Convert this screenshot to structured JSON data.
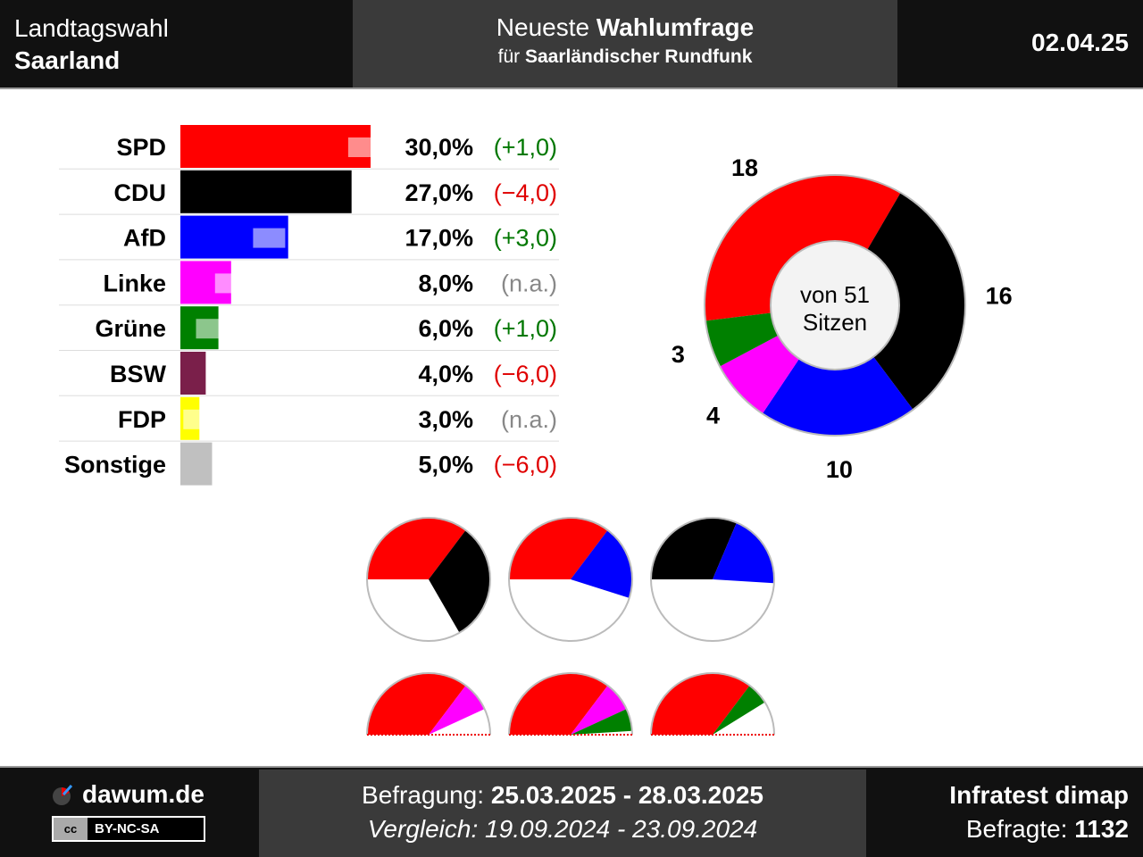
{
  "header": {
    "title_line1": "Landtagswahl",
    "title_line2": "Saarland",
    "center_prefix": "Neueste",
    "center_bold": "Wahlumfrage",
    "center_sub_prefix": "für",
    "center_sub_bold": "Saarländischer Rundfunk",
    "date": "02.04.25"
  },
  "footer": {
    "brand": "dawum.de",
    "license": "BY-NC-SA",
    "license_icon": "cc",
    "survey_label": "Befragung:",
    "survey_period": "25.03.2025 - 28.03.2025",
    "compare_label": "Vergleich:",
    "compare_period": "19.09.2024 - 23.09.2024",
    "institute": "Infratest dimap",
    "respondents_label": "Befragte:",
    "respondents": "1132"
  },
  "chart_data": [
    {
      "type": "bar",
      "orientation": "horizontal",
      "categories": [
        "SPD",
        "CDU",
        "AfD",
        "Linke",
        "Grüne",
        "BSW",
        "FDP",
        "Sonstige"
      ],
      "values": [
        30.0,
        27.0,
        17.0,
        8.0,
        6.0,
        4.0,
        3.0,
        5.0
      ],
      "value_labels": [
        "30,0%",
        "27,0%",
        "17,0%",
        "8,0%",
        "6,0%",
        "4,0%",
        "3,0%",
        "5,0%"
      ],
      "previous_values": [
        29.0,
        31.0,
        14.0,
        null,
        5.0,
        10.0,
        null,
        11.0
      ],
      "change_labels": [
        "(+1,0)",
        "(−4,0)",
        "(+3,0)",
        "(n.a.)",
        "(+1,0)",
        "(−6,0)",
        "(n.a.)",
        "(−6,0)"
      ],
      "change_colors": [
        "#007700",
        "#e00000",
        "#007700",
        "#888888",
        "#007700",
        "#e00000",
        "#888888",
        "#e00000"
      ],
      "colors": [
        "#ff0000",
        "#000000",
        "#0000ff",
        "#ff00ff",
        "#008000",
        "#7a1f4a",
        "#ffff00",
        "#c0c0c0"
      ]
    },
    {
      "type": "pie",
      "variant": "donut",
      "center_label_line1": "von 51",
      "center_label_line2": "Sitzen",
      "total_seats": 51,
      "slices": [
        {
          "party": "SPD",
          "value": 18,
          "color": "#ff0000"
        },
        {
          "party": "CDU",
          "value": 16,
          "color": "#000000"
        },
        {
          "party": "AfD",
          "value": 10,
          "color": "#0000ff"
        },
        {
          "party": "Linke",
          "value": 4,
          "color": "#ff00ff"
        },
        {
          "party": "Grüne",
          "value": 3,
          "color": "#008000"
        }
      ],
      "slice_labels": [
        "18",
        "16",
        "10",
        "4",
        "3"
      ]
    },
    {
      "type": "pie",
      "variant": "coalition-circles",
      "total_seats": 51,
      "items": [
        {
          "parts": [
            {
              "party": "SPD",
              "value": 18,
              "color": "#ff0000"
            },
            {
              "party": "CDU",
              "value": 16,
              "color": "#000000"
            }
          ]
        },
        {
          "parts": [
            {
              "party": "SPD",
              "value": 18,
              "color": "#ff0000"
            },
            {
              "party": "AfD",
              "value": 10,
              "color": "#0000ff"
            }
          ]
        },
        {
          "parts": [
            {
              "party": "CDU",
              "value": 16,
              "color": "#000000"
            },
            {
              "party": "AfD",
              "value": 10,
              "color": "#0000ff"
            }
          ]
        }
      ]
    },
    {
      "type": "pie",
      "variant": "coalition-half-circles",
      "total_seats": 51,
      "items": [
        {
          "parts": [
            {
              "party": "SPD",
              "value": 18,
              "color": "#ff0000"
            },
            {
              "party": "Linke",
              "value": 4,
              "color": "#ff00ff"
            }
          ]
        },
        {
          "parts": [
            {
              "party": "SPD",
              "value": 18,
              "color": "#ff0000"
            },
            {
              "party": "Linke",
              "value": 4,
              "color": "#ff00ff"
            },
            {
              "party": "Grüne",
              "value": 3,
              "color": "#008000"
            }
          ]
        },
        {
          "parts": [
            {
              "party": "SPD",
              "value": 18,
              "color": "#ff0000"
            },
            {
              "party": "Grüne",
              "value": 3,
              "color": "#008000"
            }
          ]
        }
      ]
    }
  ]
}
